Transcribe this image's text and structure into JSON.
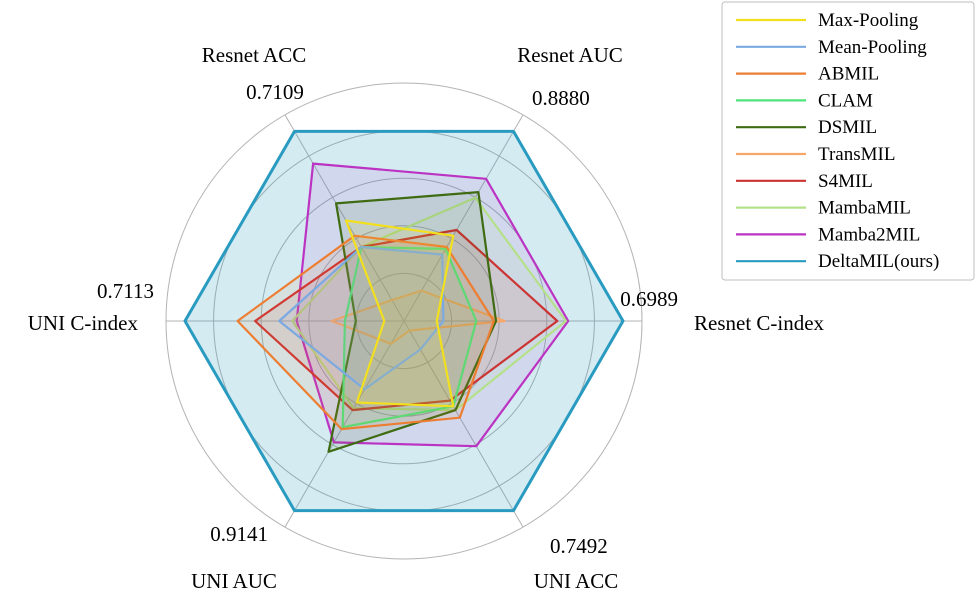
{
  "chart_data": {
    "type": "radar",
    "axes": [
      {
        "label": "Resnet C-index",
        "max_label": "0.6989"
      },
      {
        "label": "Resnet AUC",
        "max_label": "0.8880"
      },
      {
        "label": "Resnet ACC",
        "max_label": "0.7109"
      },
      {
        "label": "UNI C-index",
        "max_label": "0.7113"
      },
      {
        "label": "UNI AUC",
        "max_label": "0.9141"
      },
      {
        "label": "UNI ACC",
        "max_label": "0.7492"
      }
    ],
    "rlim": [
      0,
      1
    ],
    "grid": true,
    "legend_position": "top-right",
    "series": [
      {
        "name": "Max-Pooling",
        "color": "#f2e01f",
        "values": [
          0.15,
          0.45,
          0.53,
          0.09,
          0.43,
          0.45
        ]
      },
      {
        "name": "Mean-Pooling",
        "color": "#7ba9e0",
        "values": [
          0.18,
          0.35,
          0.39,
          0.57,
          0.36,
          0.15
        ]
      },
      {
        "name": "ABMIL",
        "color": "#ed7d31",
        "values": [
          0.41,
          0.39,
          0.45,
          0.76,
          0.57,
          0.51
        ]
      },
      {
        "name": "CLAM",
        "color": "#4ee37a",
        "values": [
          0.33,
          0.38,
          0.39,
          0.27,
          0.56,
          0.45
        ]
      },
      {
        "name": "DSMIL",
        "color": "#3f6b12",
        "values": [
          0.42,
          0.68,
          0.62,
          0.22,
          0.69,
          0.47
        ]
      },
      {
        "name": "TransMIL",
        "color": "#f7a868",
        "values": [
          0.46,
          0.16,
          0.11,
          0.33,
          0.12,
          0.05
        ]
      },
      {
        "name": "S4MIL",
        "color": "#cc3333",
        "values": [
          0.7,
          0.48,
          0.39,
          0.68,
          0.47,
          0.42
        ]
      },
      {
        "name": "MambaMIL",
        "color": "#b5e08a",
        "values": [
          0.74,
          0.65,
          0.39,
          0.51,
          0.46,
          0.47
        ]
      },
      {
        "name": "Mamba2MIL",
        "color": "#bb33c2",
        "values": [
          0.75,
          0.75,
          0.83,
          0.49,
          0.64,
          0.66
        ]
      },
      {
        "name": "DeltaMIL(ours)",
        "color": "#2a9bc0",
        "values": [
          1.0,
          1.0,
          1.0,
          1.0,
          1.0,
          1.0
        ]
      }
    ]
  }
}
